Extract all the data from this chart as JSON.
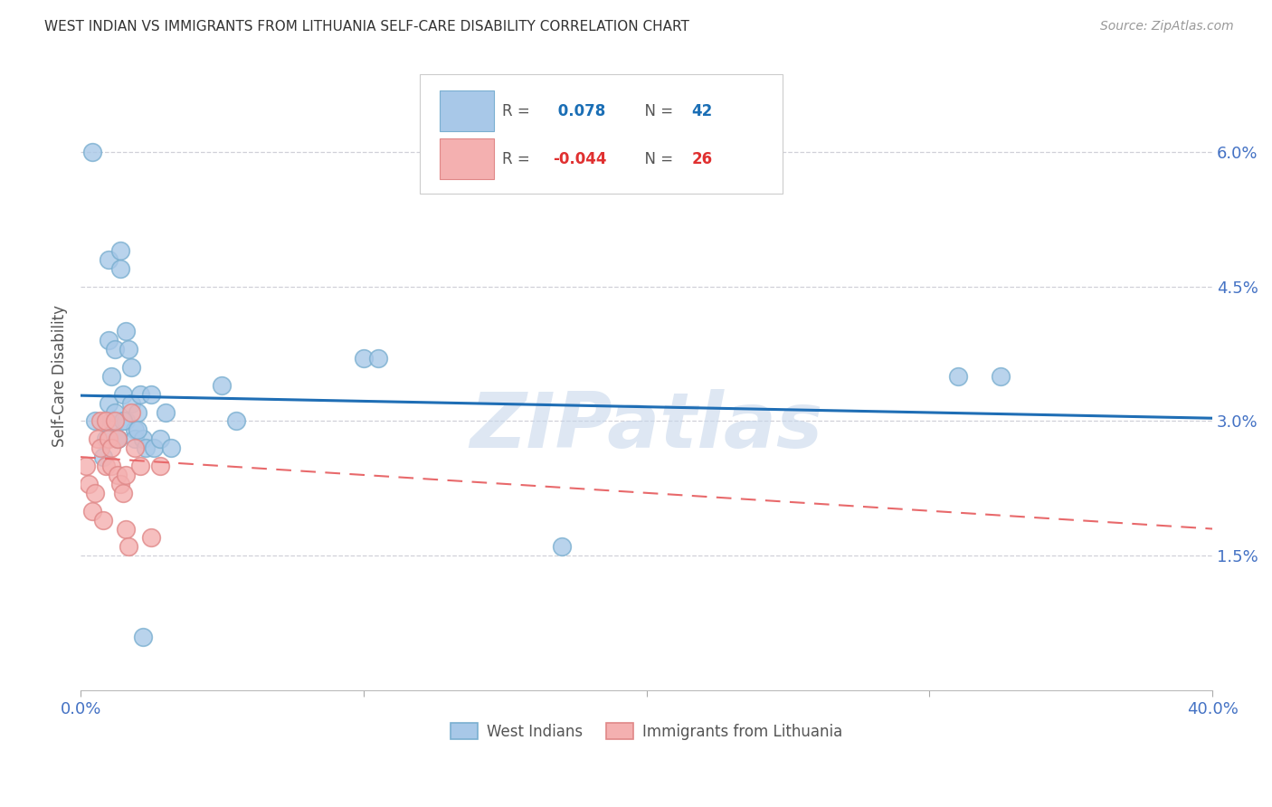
{
  "title": "WEST INDIAN VS IMMIGRANTS FROM LITHUANIA SELF-CARE DISABILITY CORRELATION CHART",
  "source": "Source: ZipAtlas.com",
  "ylabel": "Self-Care Disability",
  "ytick_labels": [
    "6.0%",
    "4.5%",
    "3.0%",
    "1.5%"
  ],
  "ytick_values": [
    0.06,
    0.045,
    0.03,
    0.015
  ],
  "xlim": [
    0.0,
    0.4
  ],
  "ylim": [
    0.0,
    0.07
  ],
  "blue_r": "0.078",
  "blue_n": "42",
  "pink_r": "-0.044",
  "pink_n": "26",
  "west_indians_x": [
    0.004,
    0.005,
    0.01,
    0.01,
    0.01,
    0.011,
    0.011,
    0.012,
    0.012,
    0.013,
    0.014,
    0.014,
    0.015,
    0.016,
    0.016,
    0.017,
    0.018,
    0.018,
    0.019,
    0.019,
    0.02,
    0.021,
    0.022,
    0.023,
    0.025,
    0.026,
    0.028,
    0.03,
    0.032,
    0.05,
    0.055,
    0.1,
    0.105,
    0.17,
    0.31,
    0.325,
    0.008,
    0.009,
    0.013,
    0.015,
    0.02,
    0.022
  ],
  "west_indians_y": [
    0.06,
    0.03,
    0.048,
    0.039,
    0.032,
    0.035,
    0.03,
    0.038,
    0.031,
    0.028,
    0.049,
    0.047,
    0.033,
    0.04,
    0.03,
    0.038,
    0.036,
    0.032,
    0.029,
    0.028,
    0.031,
    0.033,
    0.028,
    0.027,
    0.033,
    0.027,
    0.028,
    0.031,
    0.027,
    0.034,
    0.03,
    0.037,
    0.037,
    0.016,
    0.035,
    0.035,
    0.026,
    0.028,
    0.028,
    0.03,
    0.029,
    0.006
  ],
  "lithuania_x": [
    0.002,
    0.003,
    0.004,
    0.005,
    0.006,
    0.007,
    0.007,
    0.008,
    0.009,
    0.009,
    0.01,
    0.011,
    0.011,
    0.012,
    0.013,
    0.013,
    0.014,
    0.015,
    0.016,
    0.016,
    0.017,
    0.018,
    0.019,
    0.021,
    0.025,
    0.028
  ],
  "lithuania_y": [
    0.025,
    0.023,
    0.02,
    0.022,
    0.028,
    0.03,
    0.027,
    0.019,
    0.03,
    0.025,
    0.028,
    0.027,
    0.025,
    0.03,
    0.024,
    0.028,
    0.023,
    0.022,
    0.018,
    0.024,
    0.016,
    0.031,
    0.027,
    0.025,
    0.017,
    0.025
  ],
  "blue_line_color": "#1f6eb5",
  "pink_line_color": "#e8696b",
  "scatter_blue": "#a8c8e8",
  "scatter_blue_edge": "#7aafd0",
  "scatter_pink": "#f4b0b0",
  "scatter_pink_edge": "#e08888",
  "background_color": "#ffffff",
  "grid_color": "#d0d0d8",
  "title_color": "#333333",
  "axis_tick_color": "#4472c4",
  "watermark_color": "#c8d8ec",
  "watermark_text": "ZIPatlas",
  "legend_r_color_blue": "#1a6eb5",
  "legend_n_color_blue": "#1a6eb5",
  "legend_r_color_pink": "#e03030",
  "legend_n_color_pink": "#e03030"
}
